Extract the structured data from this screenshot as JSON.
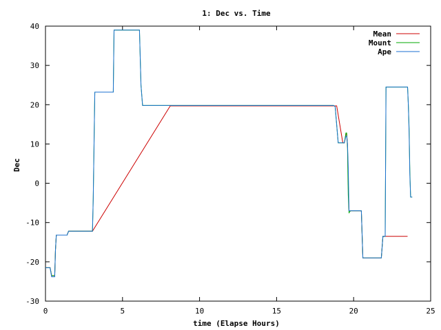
{
  "chart_data": {
    "type": "line",
    "title": "1: Dec vs. Time",
    "xlabel": "time (Elapse Hours)",
    "ylabel": "Dec",
    "xlim": [
      0,
      25
    ],
    "ylim": [
      -30,
      40
    ],
    "xticks": [
      0,
      5,
      10,
      15,
      20,
      25
    ],
    "yticks": [
      -30,
      -20,
      -10,
      0,
      10,
      20,
      30,
      40
    ],
    "grid": false,
    "legend_position": "top-right",
    "series": [
      {
        "name": "Mean",
        "color": "#cc0000",
        "x": [
          0.0,
          0.3,
          0.4,
          0.6,
          0.65,
          0.7,
          1.4,
          1.5,
          3.05,
          8.1,
          18.7,
          18.9,
          19.3,
          19.4,
          19.5,
          19.55,
          19.6,
          19.65,
          19.7,
          20.1,
          20.5,
          20.6,
          21.6,
          21.8,
          21.9,
          22.05,
          23.5
        ],
        "y": [
          -21.5,
          -21.5,
          -23.5,
          -23.5,
          -17,
          -13.2,
          -13.2,
          -12.2,
          -12.2,
          19.7,
          19.7,
          19.7,
          10.3,
          10.3,
          12.5,
          12.5,
          10,
          0,
          -7,
          -7,
          -7,
          -19,
          -19,
          -19,
          -13.5,
          -13.5,
          -13.5
        ]
      },
      {
        "name": "Mount",
        "color": "#00aa00",
        "x": [
          0.0,
          0.3,
          0.4,
          0.6,
          0.65,
          0.7,
          1.4,
          1.5,
          3.05,
          3.1,
          3.2,
          4.4,
          4.45,
          6.1,
          6.2,
          6.3,
          18.7,
          18.8,
          19.0,
          19.4,
          19.5,
          19.55,
          19.6,
          19.65,
          19.7,
          19.8,
          20.5,
          20.6,
          21.8,
          21.9,
          22.05,
          22.1,
          23.5,
          23.55,
          23.6,
          23.65,
          23.7,
          23.8
        ],
        "y": [
          -21.5,
          -21.5,
          -23.5,
          -23.5,
          -17,
          -13.2,
          -13.2,
          -12.2,
          -12.2,
          -4,
          23.2,
          23.2,
          39,
          39,
          25,
          19.8,
          19.8,
          19.5,
          10.3,
          10.3,
          12.8,
          12.8,
          9,
          -3,
          -7.5,
          -7,
          -7,
          -19,
          -19,
          -13.5,
          -13.5,
          24.5,
          24.5,
          20,
          14,
          3,
          -3.5,
          -3.5
        ]
      },
      {
        "name": "Ape",
        "color": "#1a6fd0",
        "x": [
          0.0,
          0.3,
          0.4,
          0.6,
          0.65,
          0.7,
          1.4,
          1.5,
          3.05,
          3.1,
          3.2,
          4.4,
          4.45,
          6.1,
          6.2,
          6.3,
          18.7,
          18.8,
          19.0,
          19.4,
          19.5,
          19.55,
          19.6,
          19.65,
          19.7,
          19.8,
          20.5,
          20.6,
          21.8,
          21.9,
          22.05,
          22.1,
          23.5,
          23.55,
          23.6,
          23.65,
          23.7,
          23.8
        ],
        "y": [
          -21.5,
          -21.5,
          -23.8,
          -23.8,
          -17,
          -13.2,
          -13.2,
          -12.2,
          -12.2,
          -4,
          23.2,
          23.2,
          39,
          39,
          25,
          19.8,
          19.8,
          19.5,
          10.3,
          10.3,
          12.0,
          12.0,
          10,
          4,
          -7,
          -7,
          -7,
          -19,
          -19,
          -13.5,
          -13.5,
          24.5,
          24.5,
          20,
          13,
          2,
          -3.5,
          -3.5
        ]
      }
    ]
  }
}
